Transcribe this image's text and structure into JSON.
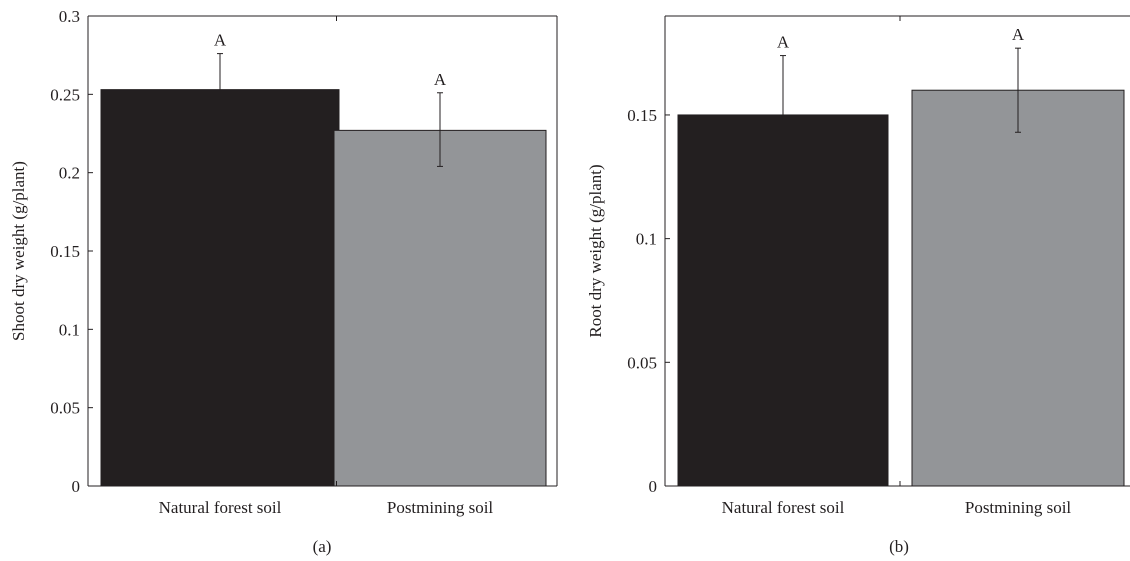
{
  "chart_data": [
    {
      "panel_label": "(a)",
      "type": "bar",
      "ylabel": "Shoot dry weight (g/plant)",
      "ylim": [
        0,
        0.3
      ],
      "yticks": [
        0,
        0.05,
        0.1,
        0.15,
        0.2,
        0.25,
        0.3
      ],
      "ytick_labels": [
        "0",
        "0.05",
        "0.1",
        "0.15",
        "0.2",
        "0.25",
        "0.3"
      ],
      "categories": [
        "Natural forest soil",
        "Postmining soil"
      ],
      "values": [
        0.253,
        0.227
      ],
      "error_plus": [
        0.023,
        0.024
      ],
      "error_minus": [
        0.0,
        0.023
      ],
      "significance_letters": [
        "A",
        "A"
      ],
      "bar_colors": [
        "#231f20",
        "#939598"
      ]
    },
    {
      "panel_label": "(b)",
      "type": "bar",
      "ylabel": "Root dry weight (g/plant)",
      "ylim": [
        0,
        0.19
      ],
      "yticks": [
        0,
        0.05,
        0.1,
        0.15
      ],
      "ytick_labels": [
        "0",
        "0.05",
        "0.1",
        "0.15"
      ],
      "categories": [
        "Natural forest soil",
        "Postmining soil"
      ],
      "values": [
        0.15,
        0.16
      ],
      "error_plus": [
        0.024,
        0.017
      ],
      "error_minus": [
        0.0,
        0.017
      ],
      "significance_letters": [
        "A",
        "A"
      ],
      "bar_colors": [
        "#231f20",
        "#939598"
      ]
    }
  ]
}
